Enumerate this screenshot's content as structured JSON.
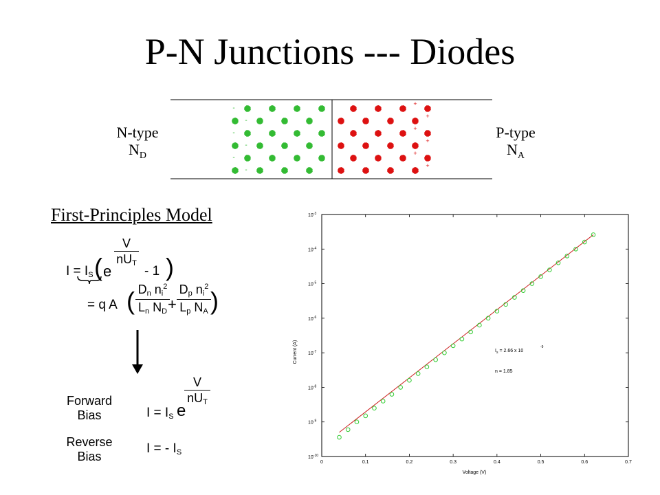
{
  "slide": {
    "title": "P-N Junctions --- Diodes",
    "n_type": {
      "label": "N-type",
      "symbol": "N",
      "sub": "D"
    },
    "p_type": {
      "label": "P-type",
      "symbol": "N",
      "sub": "A"
    },
    "minus_sign": "-",
    "plus_sign": "+",
    "colors": {
      "n_dot": "#33bb33",
      "p_dot": "#dd1111"
    },
    "model_heading": "First-Principles Model"
  },
  "equations": {
    "I_eq": "I = I",
    "I_eq_sub": "S",
    "e": "e",
    "V": "V",
    "nU": "nU",
    "nU_sub": "T",
    "minus_one": "- 1",
    "eq_qA": "= q A",
    "Dn": "D",
    "Dn_sub": "n",
    "Dp": "D",
    "Dp_sub": "p",
    "ni": "n",
    "ni_sub": "i",
    "ni_sup": "2",
    "Ln": "L",
    "Ln_sub": "n",
    "Lp": "L",
    "Lp_sub": "p",
    "ND": "N",
    "ND_sub": "D",
    "NA": "N",
    "NA_sub": "A",
    "plus": "+",
    "forward_bias": [
      "Forward",
      "Bias"
    ],
    "reverse_bias": [
      "Reverse",
      "Bias"
    ],
    "forward_eq": "I = I",
    "forward_eq_sub": "S",
    "reverse_eq": "I = - I",
    "reverse_eq_sub": "S"
  },
  "chart_data": {
    "type": "scatter",
    "title": "",
    "xlabel": "Voltage (V)",
    "ylabel": "Current (A)",
    "xlim": [
      0,
      0.7
    ],
    "ylim_log10": [
      -10,
      -3
    ],
    "log_y": true,
    "x_ticks": [
      "0",
      "0.1",
      "0.2",
      "0.3",
      "0.4",
      "0.5",
      "0.6",
      "0.7"
    ],
    "y_ticks": [
      {
        "base": "10",
        "exp": "-3"
      },
      {
        "base": "10",
        "exp": "-4"
      },
      {
        "base": "10",
        "exp": "-5"
      },
      {
        "base": "10",
        "exp": "-6"
      },
      {
        "base": "10",
        "exp": "-7"
      },
      {
        "base": "10",
        "exp": "-8"
      },
      {
        "base": "10",
        "exp": "-9"
      },
      {
        "base": "10",
        "exp": "-10"
      }
    ],
    "grid": false,
    "colors": {
      "marker": "#33cc33",
      "fit": "#cc2222"
    },
    "points_x": [
      0.04,
      0.06,
      0.08,
      0.1,
      0.12,
      0.14,
      0.16,
      0.18,
      0.2,
      0.22,
      0.24,
      0.26,
      0.28,
      0.3,
      0.32,
      0.34,
      0.36,
      0.38,
      0.4,
      0.42,
      0.44,
      0.46,
      0.48,
      0.5,
      0.52,
      0.54,
      0.56,
      0.58,
      0.6,
      0.62
    ],
    "points_y": [
      3.6e-10,
      6e-10,
      1e-09,
      1.5e-09,
      2.5e-09,
      4e-09,
      6.3e-09,
      1e-08,
      1.6e-08,
      2.5e-08,
      3.9e-08,
      6.3e-08,
      1e-07,
      1.6e-07,
      2.5e-07,
      4e-07,
      6.3e-07,
      1e-06,
      1.6e-06,
      2.5e-06,
      4e-06,
      6.3e-06,
      1e-05,
      1.6e-05,
      2.5e-05,
      4e-05,
      6.3e-05,
      0.0001,
      0.00016,
      0.00026
    ],
    "fit_line": {
      "x": [
        0.04,
        0.62
      ],
      "y": [
        5e-10,
        0.00026
      ]
    },
    "annotations": {
      "is_label": "I",
      "is_sub": "s",
      "is_value": "= 2.66 x 10",
      "is_exp": "-9",
      "n_value": "n = 1.85"
    }
  }
}
